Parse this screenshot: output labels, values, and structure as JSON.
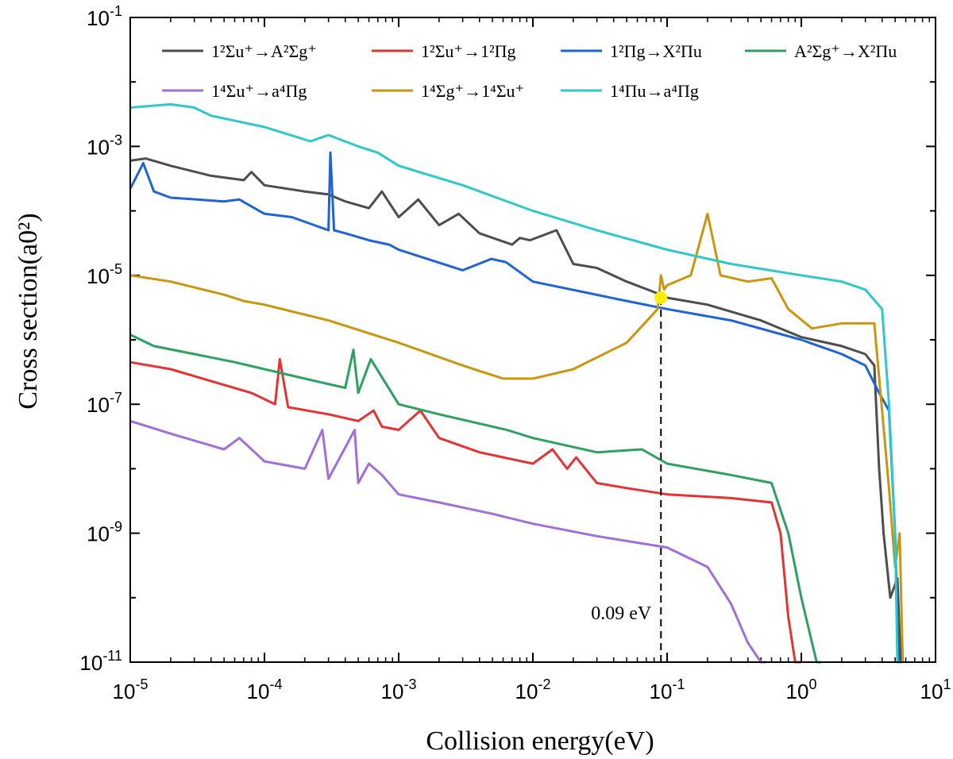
{
  "chart_data": {
    "type": "line",
    "xlabel": "Collision energy(eV)",
    "ylabel": "Cross section(a0²)",
    "xscale": "log",
    "yscale": "log",
    "xlim": [
      1e-05,
      10
    ],
    "ylim": [
      1e-11,
      0.1
    ],
    "xticks": [
      {
        "v": 1e-05,
        "m": "10",
        "e": "-5"
      },
      {
        "v": 0.0001,
        "m": "10",
        "e": "-4"
      },
      {
        "v": 0.001,
        "m": "10",
        "e": "-3"
      },
      {
        "v": 0.01,
        "m": "10",
        "e": "-2"
      },
      {
        "v": 0.1,
        "m": "10",
        "e": "-1"
      },
      {
        "v": 1,
        "m": "10",
        "e": "0"
      },
      {
        "v": 10,
        "m": "10",
        "e": "1"
      }
    ],
    "xtick_labels": [
      "10^-5",
      "10^-4",
      "10^-3",
      "10^-2",
      "10^-1",
      "10^0",
      "10^1"
    ],
    "yticks": [
      {
        "v": 1e-11,
        "m": "10",
        "e": "-11"
      },
      {
        "v": 1e-09,
        "m": "10",
        "e": "-9"
      },
      {
        "v": 1e-07,
        "m": "10",
        "e": "-7"
      },
      {
        "v": 1e-05,
        "m": "10",
        "e": "-5"
      },
      {
        "v": 0.001,
        "m": "10",
        "e": "-3"
      },
      {
        "v": 0.1,
        "m": "10",
        "e": "-1"
      }
    ],
    "ytick_labels": [
      "10^-11",
      "10^-9",
      "10^-7",
      "10^-5",
      "10^-3",
      "10^-1"
    ],
    "legend_position": "top",
    "annotation": {
      "text": "0.09 eV",
      "x": 0.09,
      "y": 4.5e-06,
      "marker_color": "#ffee00"
    },
    "series": [
      {
        "name": "1²Σu⁺→A²Σg⁺",
        "color": "#4d4d4d",
        "x": [
          1e-05,
          1.3e-05,
          2e-05,
          4e-05,
          7e-05,
          8e-05,
          0.0001,
          0.0002,
          0.0003,
          0.0004,
          0.0006,
          0.00075,
          0.001,
          0.0014,
          0.002,
          0.0028,
          0.004,
          0.007,
          0.008,
          0.0095,
          0.015,
          0.02,
          0.03,
          0.05,
          0.08,
          0.1,
          0.2,
          0.5,
          1,
          2,
          3,
          3.5,
          3.8,
          4.1,
          4.6,
          5.2,
          5.5
        ],
        "y": [
          0.0006,
          0.00065,
          0.0005,
          0.00035,
          0.0003,
          0.0004,
          0.00025,
          0.0002,
          0.00018,
          0.00014,
          0.00011,
          0.0002,
          8e-05,
          0.00015,
          6e-05,
          9e-05,
          4.5e-05,
          3e-05,
          3.8e-05,
          3.5e-05,
          5e-05,
          1.5e-05,
          1.3e-05,
          8e-06,
          5.5e-06,
          4.5e-06,
          3.5e-06,
          2e-06,
          1.1e-06,
          8e-07,
          6e-07,
          4e-07,
          1e-08,
          1e-09,
          1e-10,
          2e-10,
          1e-11
        ]
      },
      {
        "name": "1²Σu⁺→1²Πg",
        "color": "#e53333",
        "x": [
          1e-05,
          2e-05,
          5e-05,
          8e-05,
          0.00012,
          0.00013,
          0.00015,
          0.0003,
          0.0005,
          0.00065,
          0.00075,
          0.001,
          0.00145,
          0.002,
          0.004,
          0.01,
          0.014,
          0.018,
          0.021,
          0.03,
          0.05,
          0.1,
          0.3,
          0.6,
          0.7,
          0.8,
          0.9,
          1.0
        ],
        "y": [
          4.5e-07,
          3.5e-07,
          2e-07,
          1.5e-07,
          1e-07,
          5e-07,
          9e-08,
          7e-08,
          5.5e-08,
          8e-08,
          4.5e-08,
          4e-08,
          8e-08,
          3e-08,
          1.8e-08,
          1.2e-08,
          2e-08,
          1e-08,
          1.5e-08,
          6e-09,
          5e-09,
          4e-09,
          3.5e-09,
          3e-09,
          1e-09,
          5e-11,
          5e-12,
          1e-11
        ]
      },
      {
        "name": "1²Πg→X²Πu",
        "color": "#1e64d8",
        "x": [
          1e-05,
          1.25e-05,
          1.5e-05,
          2e-05,
          5e-05,
          6.5e-05,
          0.0001,
          0.00016,
          0.0003,
          0.00031,
          0.00033,
          0.0004,
          0.0006,
          0.00085,
          0.001,
          0.003,
          0.0049,
          0.0063,
          0.01,
          0.05,
          0.1,
          0.3,
          1,
          2,
          3,
          3.8,
          4.5,
          5,
          5.3,
          5.6
        ],
        "y": [
          0.00022,
          0.00055,
          0.0002,
          0.00016,
          0.00014,
          0.00015,
          9e-05,
          8e-05,
          5e-05,
          0.0008,
          5e-05,
          4.5e-05,
          3.5e-05,
          3e-05,
          2.5e-05,
          1.2e-05,
          1.8e-05,
          1.6e-05,
          8e-06,
          4e-06,
          3e-06,
          2e-06,
          1e-06,
          6e-07,
          4e-07,
          1.5e-07,
          8e-08,
          1e-09,
          1e-11,
          1e-11
        ]
      },
      {
        "name": "A²Σg⁺→X²Πu",
        "color": "#2ea060",
        "x": [
          1e-05,
          1.5e-05,
          3e-05,
          6e-05,
          0.0001,
          0.0002,
          0.0004,
          0.00046,
          0.0005,
          0.00062,
          0.001,
          0.002,
          0.0064,
          0.01,
          0.03,
          0.065,
          0.1,
          0.3,
          0.6,
          0.8,
          1.0,
          1.3,
          1.4
        ],
        "y": [
          1.2e-06,
          8e-07,
          6e-07,
          4.5e-07,
          3.5e-07,
          2.5e-07,
          1.8e-07,
          7e-07,
          1.5e-07,
          5e-07,
          1e-07,
          7e-08,
          4e-08,
          3e-08,
          1.8e-08,
          2e-08,
          1.2e-08,
          8e-09,
          6e-09,
          1e-09,
          1e-10,
          1e-11,
          1e-11
        ]
      },
      {
        "name": "1⁴Σu⁺→a⁴Πg",
        "color": "#a06fd8",
        "x": [
          1e-05,
          2e-05,
          5e-05,
          6.5e-05,
          0.0001,
          0.0002,
          0.00027,
          0.0003,
          0.00047,
          0.0005,
          0.0006,
          0.00075,
          0.001,
          0.002,
          0.005,
          0.01,
          0.03,
          0.1,
          0.2,
          0.3,
          0.4,
          0.5,
          0.55
        ],
        "y": [
          5.5e-08,
          3.5e-08,
          2e-08,
          3e-08,
          1.3e-08,
          1e-08,
          4e-08,
          7e-09,
          4e-08,
          6e-09,
          1.2e-08,
          8e-09,
          4e-09,
          3e-09,
          2e-09,
          1.4e-09,
          9e-10,
          6e-10,
          3e-10,
          8e-11,
          2e-11,
          5e-12,
          1e-11
        ]
      },
      {
        "name": "1⁴Σg⁺→1⁴Σu⁺",
        "color": "#c8960f",
        "x": [
          1e-05,
          2e-05,
          5e-05,
          7e-05,
          0.0001,
          0.0003,
          0.001,
          0.003,
          0.006,
          0.01,
          0.02,
          0.05,
          0.085,
          0.09,
          0.095,
          0.1,
          0.15,
          0.2,
          0.25,
          0.4,
          0.6,
          0.8,
          1.2,
          2,
          3.5,
          4.5,
          5,
          5.4,
          5.7
        ],
        "y": [
          1e-05,
          8e-06,
          5e-06,
          4e-06,
          3.5e-06,
          2e-06,
          9e-07,
          4e-07,
          2.5e-07,
          2.5e-07,
          3.5e-07,
          9e-07,
          3e-06,
          1e-05,
          6e-06,
          7e-06,
          1e-05,
          9e-05,
          1e-05,
          8e-06,
          9e-06,
          3e-06,
          1.5e-06,
          1.8e-06,
          1.8e-06,
          5e-09,
          3e-10,
          1e-09,
          1e-11
        ]
      },
      {
        "name": "1⁴Πu→a⁴Πg",
        "color": "#2ec8c8",
        "x": [
          1e-05,
          2e-05,
          3e-05,
          4e-05,
          0.0001,
          0.00022,
          0.0003,
          0.0005,
          0.0007,
          0.001,
          0.003,
          0.01,
          0.03,
          0.1,
          0.3,
          1,
          2,
          3,
          4,
          4.5,
          5,
          5.2,
          5.5
        ],
        "y": [
          0.004,
          0.0045,
          0.004,
          0.003,
          0.002,
          0.0012,
          0.0015,
          0.001,
          0.0008,
          0.0005,
          0.00025,
          0.0001,
          5e-05,
          2.5e-05,
          1.5e-05,
          1e-05,
          8e-06,
          6e-06,
          3e-06,
          1e-07,
          1e-09,
          1e-11,
          1e-11
        ]
      }
    ]
  }
}
